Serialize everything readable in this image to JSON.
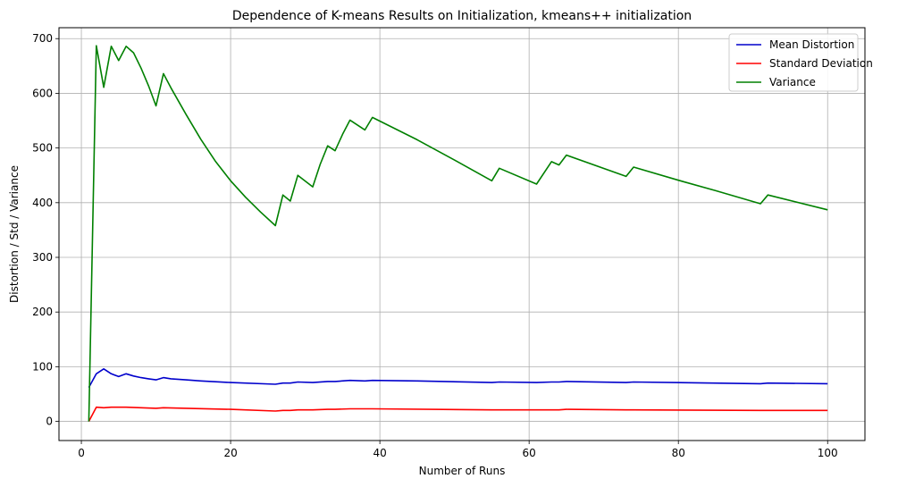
{
  "chart_data": {
    "type": "line",
    "title": "Dependence of K-means Results on Initialization, kmeans++ initialization",
    "xlabel": "Number of Runs",
    "ylabel": "Distortion / Std / Variance",
    "xlim": [
      -3,
      105
    ],
    "ylim": [
      -35,
      720
    ],
    "xticks": [
      0,
      20,
      40,
      60,
      80,
      100
    ],
    "yticks": [
      0,
      100,
      200,
      300,
      400,
      500,
      600,
      700
    ],
    "grid": true,
    "legend_position": "top-right",
    "series": [
      {
        "name": "Mean Distortion",
        "color": "#0000cc",
        "points": [
          [
            1,
            62
          ],
          [
            2,
            87
          ],
          [
            3,
            96
          ],
          [
            4,
            87
          ],
          [
            5,
            82
          ],
          [
            6,
            87
          ],
          [
            7,
            83
          ],
          [
            8,
            80
          ],
          [
            9,
            78
          ],
          [
            10,
            76
          ],
          [
            11,
            80
          ],
          [
            12,
            78
          ],
          [
            14,
            76
          ],
          [
            16,
            74
          ],
          [
            20,
            71
          ],
          [
            26,
            68
          ],
          [
            27,
            70
          ],
          [
            28,
            70
          ],
          [
            29,
            72
          ],
          [
            31,
            71
          ],
          [
            33,
            73
          ],
          [
            34,
            73
          ],
          [
            36,
            75
          ],
          [
            38,
            74
          ],
          [
            39,
            75
          ],
          [
            45,
            74
          ],
          [
            55,
            71
          ],
          [
            56,
            72
          ],
          [
            61,
            71
          ],
          [
            63,
            72
          ],
          [
            64,
            72
          ],
          [
            65,
            73
          ],
          [
            73,
            71
          ],
          [
            74,
            72
          ],
          [
            91,
            69
          ],
          [
            92,
            70
          ],
          [
            100,
            69
          ]
        ]
      },
      {
        "name": "Standard Deviation",
        "color": "#ff0000",
        "points": [
          [
            1,
            0
          ],
          [
            2,
            26
          ],
          [
            3,
            25
          ],
          [
            4,
            26
          ],
          [
            5,
            26
          ],
          [
            6,
            26
          ],
          [
            8,
            25
          ],
          [
            10,
            24
          ],
          [
            11,
            25
          ],
          [
            14,
            24
          ],
          [
            20,
            22
          ],
          [
            26,
            19
          ],
          [
            27,
            20
          ],
          [
            28,
            20
          ],
          [
            29,
            21
          ],
          [
            31,
            21
          ],
          [
            33,
            22
          ],
          [
            34,
            22
          ],
          [
            36,
            23
          ],
          [
            38,
            23
          ],
          [
            39,
            23
          ],
          [
            55,
            21
          ],
          [
            56,
            21
          ],
          [
            61,
            21
          ],
          [
            63,
            21
          ],
          [
            64,
            21
          ],
          [
            65,
            22
          ],
          [
            73,
            21
          ],
          [
            74,
            21
          ],
          [
            91,
            20
          ],
          [
            92,
            20
          ],
          [
            100,
            20
          ]
        ]
      },
      {
        "name": "Variance",
        "color": "#008000",
        "points": [
          [
            1,
            0
          ],
          [
            2,
            687
          ],
          [
            3,
            611
          ],
          [
            4,
            686
          ],
          [
            5,
            660
          ],
          [
            6,
            686
          ],
          [
            7,
            674
          ],
          [
            8,
            646
          ],
          [
            9,
            614
          ],
          [
            10,
            577
          ],
          [
            11,
            636
          ],
          [
            12,
            610
          ],
          [
            14,
            562
          ],
          [
            16,
            516
          ],
          [
            18,
            475
          ],
          [
            20,
            440
          ],
          [
            22,
            410
          ],
          [
            24,
            383
          ],
          [
            26,
            358
          ],
          [
            27,
            414
          ],
          [
            28,
            403
          ],
          [
            29,
            450
          ],
          [
            31,
            429
          ],
          [
            32,
            470
          ],
          [
            33,
            504
          ],
          [
            34,
            495
          ],
          [
            35,
            525
          ],
          [
            36,
            551
          ],
          [
            38,
            533
          ],
          [
            39,
            556
          ],
          [
            45,
            515
          ],
          [
            50,
            478
          ],
          [
            55,
            440
          ],
          [
            56,
            463
          ],
          [
            61,
            434
          ],
          [
            63,
            475
          ],
          [
            64,
            469
          ],
          [
            65,
            487
          ],
          [
            73,
            448
          ],
          [
            74,
            465
          ],
          [
            80,
            441
          ],
          [
            85,
            422
          ],
          [
            91,
            398
          ],
          [
            92,
            414
          ],
          [
            100,
            387
          ]
        ]
      }
    ]
  }
}
